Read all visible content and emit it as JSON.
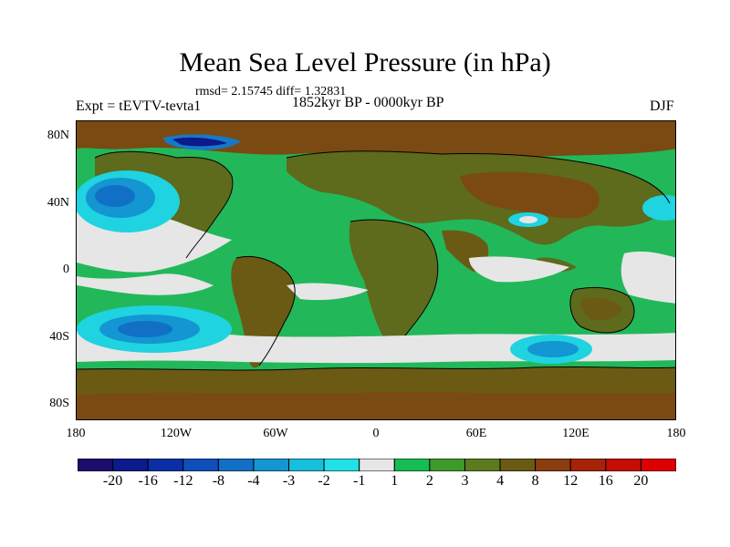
{
  "header": {
    "title": "Mean Sea Level Pressure (in hPa)",
    "stats": "rmsd= 2.15745 diff= 1.32831",
    "experiment": "Expt = tEVTV-tevta1",
    "period": "1852kyr BP - 0000kyr BP",
    "season": "DJF"
  },
  "map": {
    "projection": "cylindrical equidistant",
    "lat_ticks": [
      "80N",
      "40N",
      "0",
      "40S",
      "80S"
    ],
    "lon_ticks": [
      "180",
      "120W",
      "60W",
      "0",
      "60E",
      "120E",
      "180"
    ]
  },
  "colorbar": {
    "labels": [
      "-20",
      "-16",
      "-12",
      "-8",
      "-4",
      "-3",
      "-2",
      "-1",
      "1",
      "2",
      "3",
      "4",
      "8",
      "12",
      "16",
      "20"
    ],
    "colors": [
      "#1a0d6e",
      "#0c1a8c",
      "#0a2fa5",
      "#0e4fbb",
      "#1170c6",
      "#1396d2",
      "#16c0dd",
      "#21e0e6",
      "#e6e6e6",
      "#16bd55",
      "#3f9a2c",
      "#5c7a1e",
      "#6b5a14",
      "#8a3d0e",
      "#a62307",
      "#c30d05",
      "#dc0000"
    ]
  },
  "palette": {
    "land_dominant": "#5e6a1c",
    "ocean_green": "#22b85a",
    "neutral": "#e6e6e6",
    "low_cyan": "#1fd3e1",
    "low_blue": "#1579c9",
    "high_brown": "#7a4a12"
  }
}
